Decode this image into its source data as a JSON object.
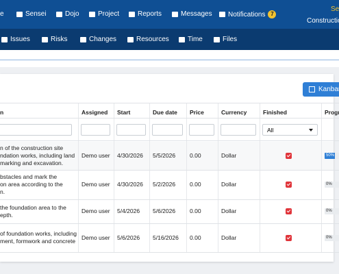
{
  "top_nav": {
    "items": [
      "e",
      "Sensei",
      "Dojo",
      "Project",
      "Reports",
      "Messages",
      "Notifications"
    ],
    "badge": "7",
    "user_name": "Se",
    "org": "Construction"
  },
  "sub_nav": {
    "items": [
      "Issues",
      "Risks",
      "Changes",
      "Resources",
      "Time",
      "Files"
    ]
  },
  "toolbar": {
    "button": "Kanban"
  },
  "table": {
    "headers": [
      "n",
      "Assigned",
      "Start",
      "Due date",
      "Price",
      "Currency",
      "Finished",
      "Progre"
    ],
    "filter_select": "All",
    "rows": [
      {
        "description": [
          "n of the construction site",
          "ndation works, including land",
          "marking and excavation."
        ],
        "assigned": "Demo user",
        "start": "4/30/2026",
        "due": "5/5/2026",
        "price": "0.00",
        "currency": "Dollar",
        "progress": {
          "value": 50,
          "label": "50%"
        }
      },
      {
        "description": [
          "bstacles and mark the",
          "on area according to the",
          "n."
        ],
        "assigned": "Demo user",
        "start": "4/30/2026",
        "due": "5/2/2026",
        "price": "0.00",
        "currency": "Dollar",
        "progress": {
          "value": 0,
          "label": "0%"
        }
      },
      {
        "description": [
          "the foundation area to the",
          "epth."
        ],
        "assigned": "Demo user",
        "start": "5/4/2026",
        "due": "5/6/2026",
        "price": "0.00",
        "currency": "Dollar",
        "progress": {
          "value": 0,
          "label": "0%"
        }
      },
      {
        "description": [
          " of foundation works, including",
          "ment, formwork and concrete"
        ],
        "assigned": "Demo user",
        "start": "5/6/2026",
        "due": "5/16/2026",
        "price": "0.00",
        "currency": "Dollar",
        "progress": {
          "value": 0,
          "label": "0%"
        }
      }
    ]
  }
}
